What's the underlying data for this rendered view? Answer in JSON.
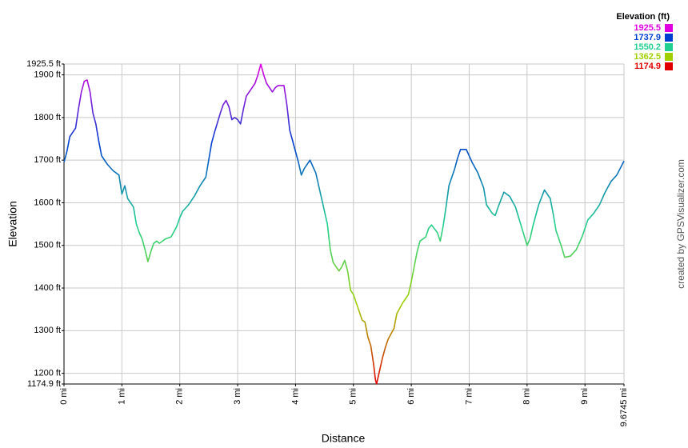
{
  "chart_data": {
    "type": "line",
    "x_label": "Distance",
    "y_label": "Elevation",
    "credit": "created by GPSVisualizer.com",
    "grid": true,
    "xlim": [
      0,
      9.6745
    ],
    "ylim": [
      1174.9,
      1925.5
    ],
    "xticks": [
      {
        "value": 0,
        "label": "0 mi"
      },
      {
        "value": 1,
        "label": "1 mi"
      },
      {
        "value": 2,
        "label": "2 mi"
      },
      {
        "value": 3,
        "label": "3 mi"
      },
      {
        "value": 4,
        "label": "4 mi"
      },
      {
        "value": 5,
        "label": "5 mi"
      },
      {
        "value": 6,
        "label": "6 mi"
      },
      {
        "value": 7,
        "label": "7 mi"
      },
      {
        "value": 8,
        "label": "8 mi"
      },
      {
        "value": 9,
        "label": "9 mi"
      },
      {
        "value": 9.6745,
        "label": "9.6745 mi"
      }
    ],
    "yticks": [
      {
        "value": 1925.5,
        "label": "1925.5 ft"
      },
      {
        "value": 1900,
        "label": "1900 ft"
      },
      {
        "value": 1800,
        "label": "1800 ft"
      },
      {
        "value": 1700,
        "label": "1700 ft"
      },
      {
        "value": 1600,
        "label": "1600 ft"
      },
      {
        "value": 1500,
        "label": "1500 ft"
      },
      {
        "value": 1400,
        "label": "1400 ft"
      },
      {
        "value": 1300,
        "label": "1300 ft"
      },
      {
        "value": 1200,
        "label": "1200 ft"
      },
      {
        "value": 1174.9,
        "label": "1174.9 ft"
      }
    ],
    "legend": {
      "title": "Elevation (ft)",
      "items": [
        {
          "value": 1925.5,
          "color": "#e000e0"
        },
        {
          "value": 1737.9,
          "color": "#0040d0"
        },
        {
          "value": 1550.2,
          "color": "#20d090"
        },
        {
          "value": 1362.5,
          "color": "#a0d000"
        },
        {
          "value": 1174.9,
          "color": "#e00000"
        }
      ]
    },
    "x": [
      0,
      0.05,
      0.1,
      0.2,
      0.25,
      0.3,
      0.35,
      0.4,
      0.45,
      0.5,
      0.55,
      0.6,
      0.65,
      0.75,
      0.85,
      0.95,
      1.0,
      1.05,
      1.1,
      1.2,
      1.25,
      1.3,
      1.35,
      1.4,
      1.45,
      1.5,
      1.55,
      1.6,
      1.65,
      1.75,
      1.85,
      1.95,
      2.0,
      2.05,
      2.15,
      2.25,
      2.35,
      2.45,
      2.5,
      2.55,
      2.6,
      2.7,
      2.75,
      2.8,
      2.85,
      2.9,
      2.95,
      3.0,
      3.05,
      3.1,
      3.15,
      3.25,
      3.3,
      3.35,
      3.4,
      3.45,
      3.5,
      3.6,
      3.65,
      3.7,
      3.8,
      3.85,
      3.9,
      4.0,
      4.05,
      4.1,
      4.15,
      4.25,
      4.35,
      4.45,
      4.55,
      4.6,
      4.65,
      4.75,
      4.8,
      4.85,
      4.9,
      4.95,
      5.0,
      5.05,
      5.15,
      5.2,
      5.25,
      5.3,
      5.35,
      5.38,
      5.4,
      5.45,
      5.5,
      5.55,
      5.6,
      5.7,
      5.75,
      5.85,
      5.95,
      6.0,
      6.05,
      6.1,
      6.15,
      6.25,
      6.3,
      6.35,
      6.45,
      6.5,
      6.55,
      6.6,
      6.65,
      6.75,
      6.8,
      6.85,
      6.95,
      7.05,
      7.15,
      7.25,
      7.3,
      7.4,
      7.45,
      7.5,
      7.6,
      7.7,
      7.8,
      7.9,
      8.0,
      8.05,
      8.1,
      8.2,
      8.3,
      8.4,
      8.45,
      8.5,
      8.6,
      8.65,
      8.75,
      8.85,
      8.95,
      9.05,
      9.15,
      9.25,
      9.35,
      9.45,
      9.55,
      9.6745
    ],
    "values": [
      1695,
      1720,
      1755,
      1775,
      1820,
      1860,
      1885,
      1888,
      1860,
      1810,
      1785,
      1745,
      1710,
      1690,
      1675,
      1665,
      1620,
      1640,
      1610,
      1590,
      1550,
      1530,
      1515,
      1490,
      1462,
      1485,
      1505,
      1510,
      1505,
      1515,
      1520,
      1545,
      1565,
      1580,
      1595,
      1615,
      1640,
      1660,
      1700,
      1740,
      1765,
      1810,
      1830,
      1840,
      1825,
      1795,
      1800,
      1795,
      1785,
      1820,
      1850,
      1870,
      1880,
      1900,
      1925,
      1900,
      1880,
      1860,
      1870,
      1875,
      1875,
      1830,
      1770,
      1720,
      1695,
      1665,
      1680,
      1700,
      1670,
      1610,
      1550,
      1490,
      1460,
      1440,
      1450,
      1465,
      1440,
      1395,
      1385,
      1365,
      1325,
      1320,
      1285,
      1265,
      1220,
      1185,
      1175,
      1205,
      1235,
      1260,
      1280,
      1305,
      1340,
      1365,
      1385,
      1415,
      1450,
      1485,
      1510,
      1520,
      1540,
      1548,
      1530,
      1510,
      1545,
      1590,
      1640,
      1680,
      1705,
      1725,
      1725,
      1695,
      1670,
      1635,
      1595,
      1575,
      1570,
      1590,
      1625,
      1615,
      1590,
      1545,
      1500,
      1515,
      1545,
      1595,
      1630,
      1610,
      1575,
      1535,
      1495,
      1472,
      1475,
      1490,
      1520,
      1560,
      1575,
      1595,
      1625,
      1650,
      1665,
      1698
    ]
  }
}
